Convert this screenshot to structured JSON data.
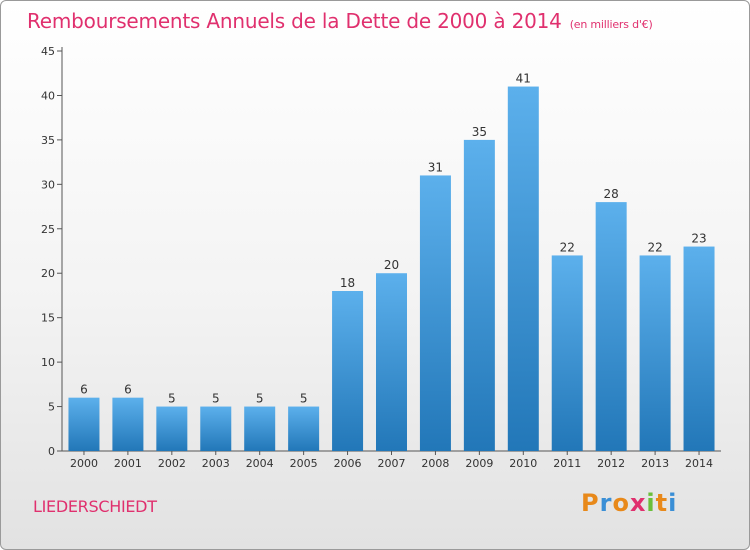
{
  "title": "Remboursements Annuels de la Dette de 2000 à 2014",
  "subtitle": "(en milliers d'€)",
  "commune": "LIEDERSCHIEDT",
  "logo_text": "Proxiti",
  "colors": {
    "title": "#e0306e",
    "bar_top": "#5cb0ec",
    "bar_bottom": "#2277b8",
    "axis": "#555555"
  },
  "chart_data": {
    "type": "bar",
    "title": "Remboursements Annuels de la Dette de 2000 à 2014",
    "xlabel": "",
    "ylabel": "",
    "categories": [
      "2000",
      "2001",
      "2002",
      "2003",
      "2004",
      "2005",
      "2006",
      "2007",
      "2008",
      "2009",
      "2010",
      "2011",
      "2012",
      "2013",
      "2014"
    ],
    "values": [
      6,
      6,
      5,
      5,
      5,
      5,
      18,
      20,
      31,
      35,
      41,
      22,
      28,
      22,
      23
    ],
    "ylim": [
      0,
      45
    ],
    "yticks": [
      0,
      5,
      10,
      15,
      20,
      25,
      30,
      35,
      40,
      45
    ],
    "grid": false,
    "legend": "none"
  }
}
